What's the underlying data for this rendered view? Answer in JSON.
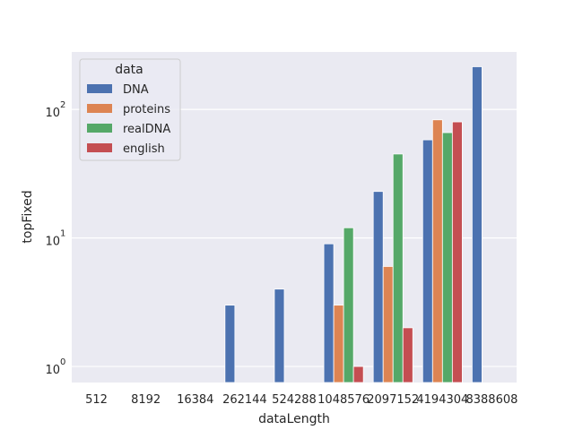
{
  "chart_data": {
    "type": "bar",
    "xlabel": "dataLength",
    "ylabel": "topFixed",
    "yscale": "log",
    "ylim": [
      0.75,
      280
    ],
    "grid": true,
    "categories": [
      "512",
      "8192",
      "16384",
      "262144",
      "524288",
      "1048576",
      "2097152",
      "4194304",
      "8388608"
    ],
    "yticks": [
      {
        "value": 1,
        "base": "10",
        "exp": "0"
      },
      {
        "value": 10,
        "base": "10",
        "exp": "1"
      },
      {
        "value": 100,
        "base": "10",
        "exp": "2"
      }
    ],
    "legend": {
      "title": "data",
      "position": "top-left"
    },
    "series": [
      {
        "name": "DNA",
        "color": "#4c72b0",
        "values": [
          null,
          null,
          null,
          3,
          4,
          9,
          23,
          58,
          215
        ]
      },
      {
        "name": "proteins",
        "color": "#dd8452",
        "values": [
          null,
          null,
          null,
          null,
          null,
          3,
          6,
          83,
          null
        ]
      },
      {
        "name": "realDNA",
        "color": "#55a868",
        "values": [
          null,
          null,
          null,
          null,
          null,
          12,
          45,
          66,
          null
        ]
      },
      {
        "name": "english",
        "color": "#c44e52",
        "values": [
          null,
          null,
          null,
          null,
          null,
          1,
          2,
          80,
          null
        ]
      }
    ]
  }
}
